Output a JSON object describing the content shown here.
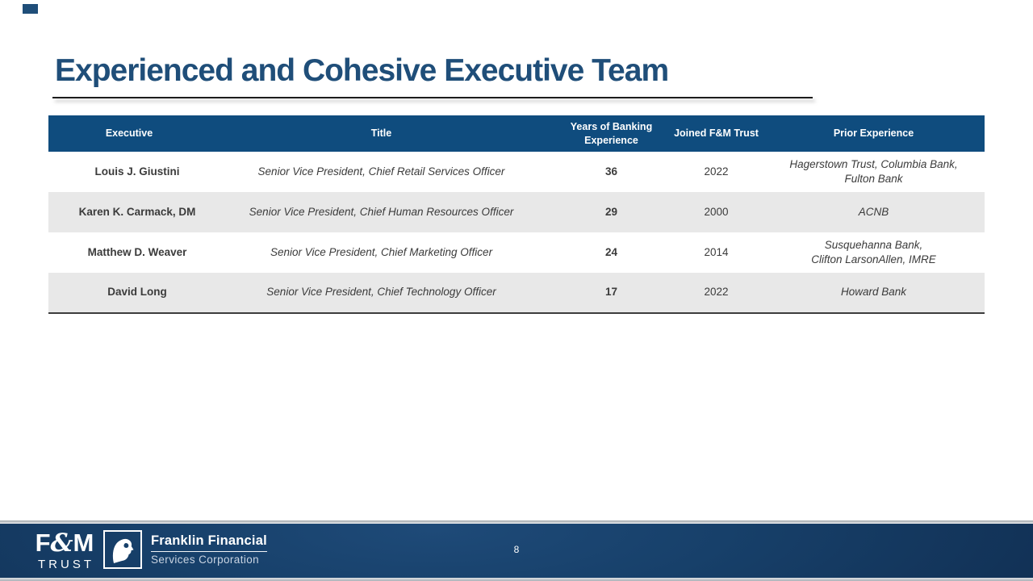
{
  "title": "Experienced and Cohesive Executive Team",
  "table": {
    "headers": [
      "Executive",
      "Title",
      "Years of Banking\nExperience",
      "Joined F&M Trust",
      "Prior Experience"
    ],
    "rows": [
      {
        "executive": "Louis J. Giustini",
        "title": "Senior Vice President, Chief Retail Services Officer",
        "years": "36",
        "joined": "2022",
        "prior": "Hagerstown Trust, Columbia Bank,\nFulton Bank"
      },
      {
        "executive": "Karen K. Carmack, DM",
        "title": "Senior Vice President, Chief Human Resources Officer",
        "years": "29",
        "joined": "2000",
        "prior": "ACNB"
      },
      {
        "executive": "Matthew D. Weaver",
        "title": "Senior Vice President, Chief Marketing Officer",
        "years": "24",
        "joined": "2014",
        "prior": "Susquehanna Bank,\nClifton LarsonAllen, IMRE"
      },
      {
        "executive": "David Long",
        "title": "Senior Vice President, Chief Technology Officer",
        "years": "17",
        "joined": "2022",
        "prior": "Howard Bank"
      }
    ]
  },
  "footer": {
    "fm_trust_logo": {
      "main": "F&M",
      "sub": "TRUST",
      "icon": "fm-trust-logo"
    },
    "franklin_logo": {
      "name": "Franklin Financial",
      "subtitle": "Services Corporation",
      "icon": "franklin-profile-icon"
    },
    "page_number": "8"
  },
  "colors": {
    "title_blue": "#1F4E79",
    "table_header_bg": "#0F4C7E",
    "row_alt_bg": "#E8E8E8",
    "body_text": "#3B3B3B",
    "footer_navy_light": "#1E4A78",
    "footer_navy_dark": "#102D50",
    "table_bottom_border": "#3D3D3D"
  }
}
